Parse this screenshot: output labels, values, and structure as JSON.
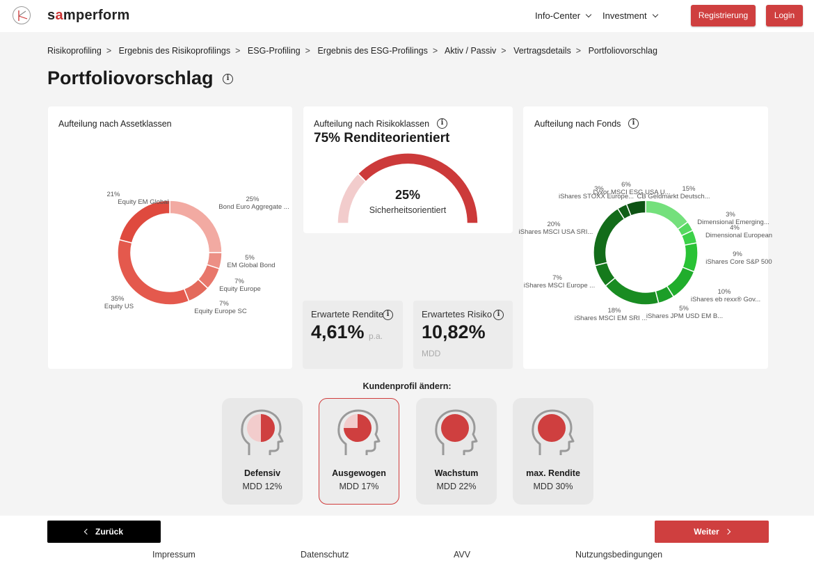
{
  "header": {
    "brand_prefix": "s",
    "brand_accent": "a",
    "brand_suffix": "mperform",
    "nav": [
      {
        "label": "Info-Center"
      },
      {
        "label": "Investment"
      }
    ],
    "register_label": "Registrierung",
    "login_label": "Login"
  },
  "breadcrumb": [
    "Risikoprofiling",
    "Ergebnis des Risikoprofilings",
    "ESG-Profiling",
    "Ergebnis des ESG-Profilings",
    "Aktiv / Passiv",
    "Vertragsdetails",
    "Portfoliovorschlag"
  ],
  "breadcrumb_separator": ">",
  "page_title": "Portfoliovorschlag",
  "info_glyph": "i",
  "asset_card": {
    "title": "Aufteilung nach Assetklassen"
  },
  "risk_card": {
    "title": "Aufteilung nach Risikoklassen",
    "headline": "75% Renditeorientiert",
    "center_value": "25%",
    "center_label": "Sicherheitsorientiert"
  },
  "fund_card": {
    "title": "Aufteilung nach Fonds"
  },
  "metrics": {
    "return_label": "Erwartete Rendite",
    "return_value": "4,61%",
    "return_unit": "p.a.",
    "risk_label": "Erwartetes Risiko",
    "risk_value": "10,82%",
    "risk_unit": "MDD"
  },
  "profiles": {
    "heading": "Kundenprofil ändern:",
    "items": [
      {
        "name": "Defensiv",
        "mdd": "MDD 12%",
        "fill": 0.5,
        "active": false
      },
      {
        "name": "Ausgewogen",
        "mdd": "MDD 17%",
        "fill": 0.75,
        "active": true
      },
      {
        "name": "Wachstum",
        "mdd": "MDD 22%",
        "fill": 1.0,
        "active": false
      },
      {
        "name": "max. Rendite",
        "mdd": "MDD 30%",
        "fill": 1.0,
        "active": false
      }
    ]
  },
  "nav_buttons": {
    "back_label": "Zurück",
    "next_label": "Weiter"
  },
  "footer": {
    "links": [
      "Impressum",
      "Datenschutz",
      "AVV",
      "Nutzungsbedingungen"
    ]
  },
  "colors": {
    "accent": "#cf3f3f",
    "gauge_light": "#f2cccc",
    "gauge_dark": "#cc3a3a"
  },
  "chart_data": [
    {
      "type": "pie",
      "donut": true,
      "slices": [
        {
          "label": "Bond Euro Aggregate ...",
          "pct_label": "25%",
          "value": 25,
          "color": "#f2aaa2"
        },
        {
          "label": "EM Global Bond",
          "pct_label": "5%",
          "value": 5,
          "color": "#ec8f85"
        },
        {
          "label": "Equity Europe",
          "pct_label": "7%",
          "value": 7,
          "color": "#e8776b"
        },
        {
          "label": "Equity Europe SC",
          "pct_label": "7%",
          "value": 7,
          "color": "#e36a5c"
        },
        {
          "label": "Equity US",
          "pct_label": "35%",
          "value": 35,
          "color": "#e4594d"
        },
        {
          "label": "Equity EM Global",
          "pct_label": "21%",
          "value": 21,
          "color": "#df4a3e"
        }
      ]
    },
    {
      "type": "pie",
      "gauge": true,
      "slices": [
        {
          "label": "Sicherheitsorientiert",
          "value": 25
        },
        {
          "label": "Renditeorientiert",
          "value": 75
        }
      ]
    },
    {
      "type": "pie",
      "donut": true,
      "slices": [
        {
          "label": "CB Geldmarkt Deutsch...",
          "pct_label": "15%",
          "value": 15,
          "color": "#74e07c"
        },
        {
          "label": "Dimensional Emerging...",
          "pct_label": "3%",
          "value": 3,
          "color": "#55d960"
        },
        {
          "label": "Dimensional European",
          "pct_label": "4%",
          "value": 4,
          "color": "#3cd149"
        },
        {
          "label": "iShares Core S&P 500",
          "pct_label": "9%",
          "value": 9,
          "color": "#29c235"
        },
        {
          "label": "iShares eb rexx® Gov...",
          "pct_label": "10%",
          "value": 10,
          "color": "#20ad2c"
        },
        {
          "label": "iShares JPM USD EM B...",
          "pct_label": "5%",
          "value": 5,
          "color": "#1c9e28"
        },
        {
          "label": "iShares MSCI EM SRI ...",
          "pct_label": "18%",
          "value": 18,
          "color": "#198c22"
        },
        {
          "label": "iShares MSCI Europe ...",
          "pct_label": "7%",
          "value": 7,
          "color": "#157a1c"
        },
        {
          "label": "iShares MSCI USA SRI...",
          "pct_label": "20%",
          "value": 20,
          "color": "#136c1a"
        },
        {
          "label": "iShares STOXX Europe...",
          "pct_label": "3%",
          "value": 3,
          "color": "#105f17"
        },
        {
          "label": "Lyxor MSCI ESG USA U...",
          "pct_label": "6%",
          "value": 6,
          "color": "#0e5314"
        }
      ]
    }
  ]
}
